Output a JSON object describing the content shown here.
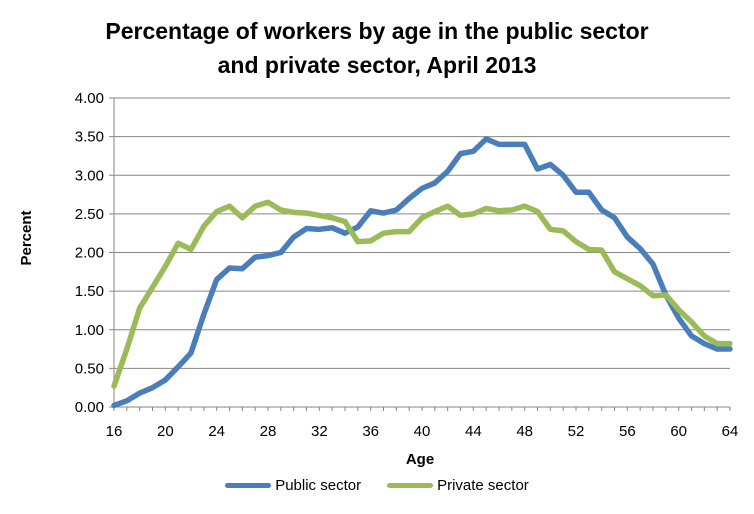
{
  "chart_data": {
    "type": "line",
    "title_line1": "Percentage of workers by age in the public sector",
    "title_line2": "and private sector, April 2013",
    "xlabel": "Age",
    "ylabel": "Percent",
    "xlim": [
      16,
      64
    ],
    "ylim": [
      0,
      4
    ],
    "xticks": [
      "16",
      "20",
      "24",
      "28",
      "32",
      "36",
      "40",
      "44",
      "48",
      "52",
      "56",
      "60",
      "64"
    ],
    "yticks": [
      "0.00",
      "0.50",
      "1.00",
      "1.50",
      "2.00",
      "2.50",
      "3.00",
      "3.50",
      "4.00"
    ],
    "grid": "horizontal",
    "legend_position": "bottom",
    "x": [
      16,
      17,
      18,
      19,
      20,
      21,
      22,
      23,
      24,
      25,
      26,
      27,
      28,
      29,
      30,
      31,
      32,
      33,
      34,
      35,
      36,
      37,
      38,
      39,
      40,
      41,
      42,
      43,
      44,
      45,
      46,
      47,
      48,
      49,
      50,
      51,
      52,
      53,
      54,
      55,
      56,
      57,
      58,
      59,
      60,
      61,
      62,
      63,
      64
    ],
    "series": [
      {
        "name": "Public sector",
        "color": "#4a7ebb",
        "values": [
          0.02,
          0.08,
          0.18,
          0.25,
          0.35,
          0.52,
          0.7,
          1.2,
          1.65,
          1.8,
          1.79,
          1.94,
          1.96,
          2.0,
          2.2,
          2.31,
          2.3,
          2.32,
          2.25,
          2.33,
          2.54,
          2.51,
          2.55,
          2.7,
          2.83,
          2.9,
          3.05,
          3.28,
          3.31,
          3.47,
          3.4,
          3.4,
          3.4,
          3.08,
          3.14,
          3.0,
          2.78,
          2.78,
          2.55,
          2.45,
          2.2,
          2.05,
          1.85,
          1.45,
          1.15,
          0.92,
          0.82,
          0.75,
          0.75
        ]
      },
      {
        "name": "Private sector",
        "color": "#9bbb59",
        "values": [
          0.27,
          0.75,
          1.28,
          1.55,
          1.82,
          2.12,
          2.04,
          2.34,
          2.53,
          2.6,
          2.45,
          2.6,
          2.65,
          2.55,
          2.52,
          2.51,
          2.48,
          2.45,
          2.4,
          2.14,
          2.15,
          2.25,
          2.27,
          2.27,
          2.45,
          2.53,
          2.6,
          2.48,
          2.5,
          2.57,
          2.54,
          2.55,
          2.6,
          2.53,
          2.3,
          2.28,
          2.14,
          2.04,
          2.03,
          1.75,
          1.66,
          1.57,
          1.44,
          1.45,
          1.26,
          1.1,
          0.92,
          0.82,
          0.82
        ]
      }
    ]
  }
}
